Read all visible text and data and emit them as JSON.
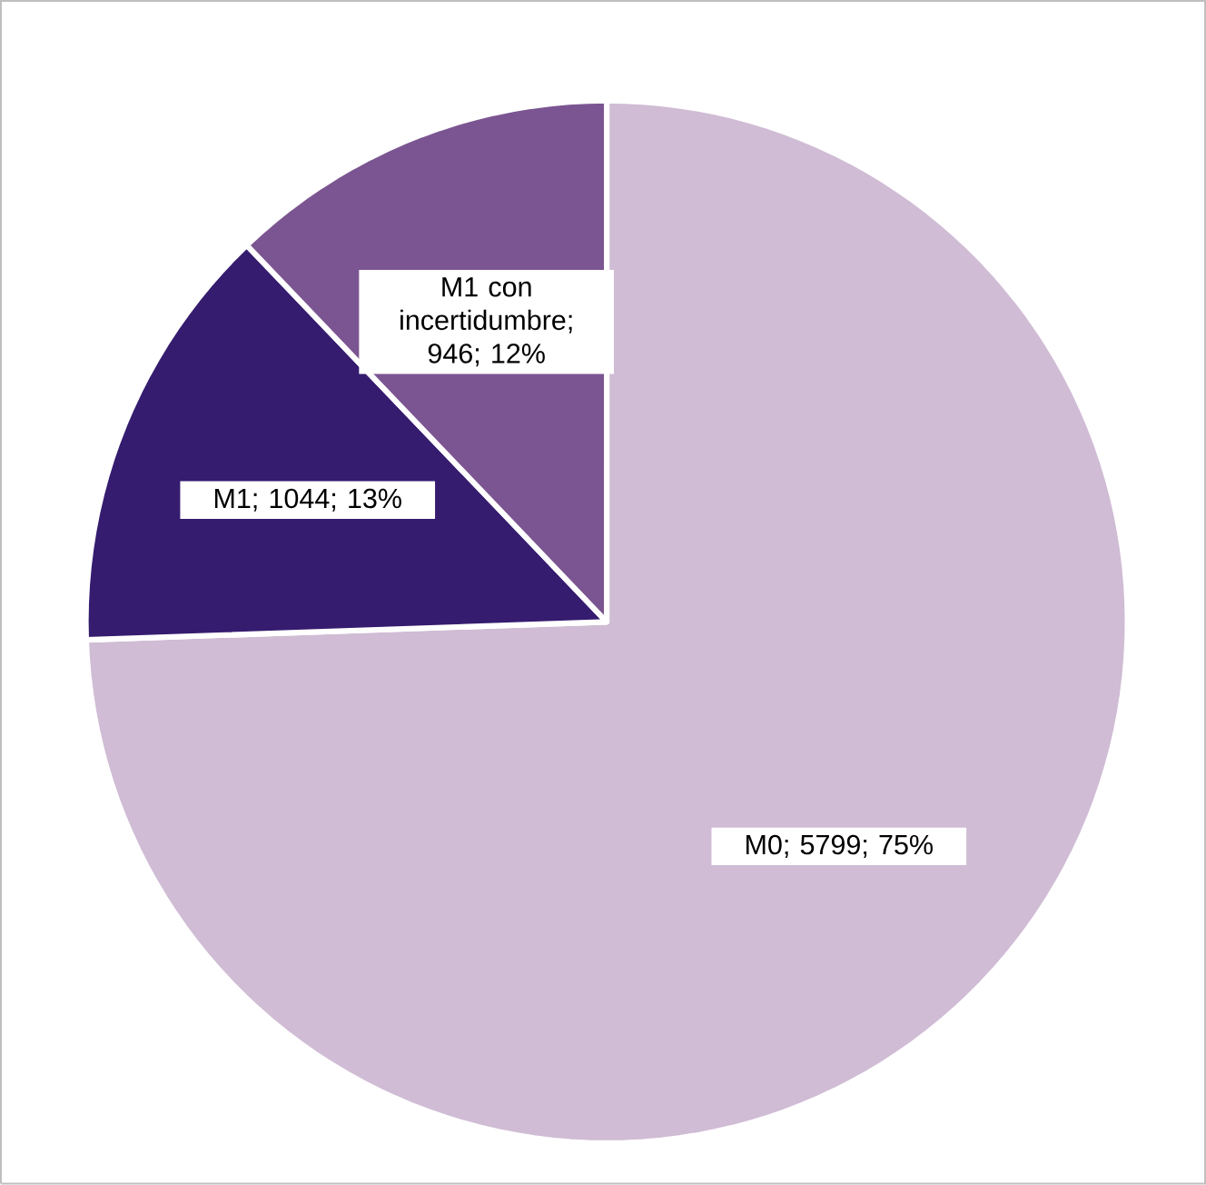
{
  "chart_data": {
    "type": "pie",
    "categories": [
      "M0",
      "M1",
      "M1 con incertidumbre"
    ],
    "values": [
      5799,
      1044,
      946
    ],
    "colors": [
      "#d0bcd5",
      "#351c6f",
      "#7b5591"
    ],
    "value_labels": [
      "; 5799; 75%",
      "; 1044; 13%",
      "; 946; 12%"
    ]
  }
}
